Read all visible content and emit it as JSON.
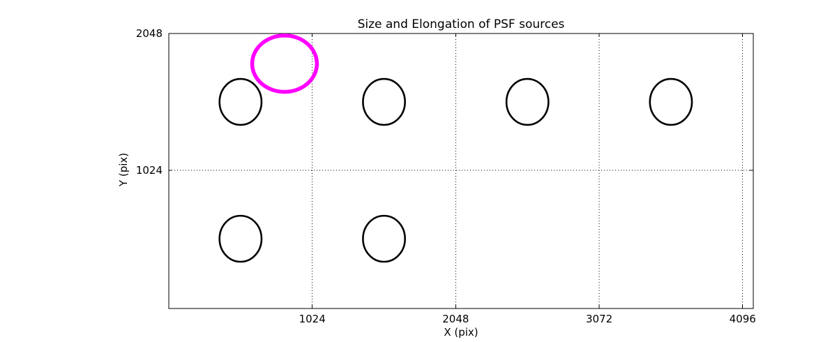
{
  "chart_data": {
    "type": "scatter",
    "title": "Size and Elongation of PSF sources",
    "xlabel": "X (pix)",
    "ylabel": "Y (pix)",
    "xlim": [
      0,
      4172
    ],
    "ylim": [
      -10,
      2048
    ],
    "xticks": [
      1024,
      2048,
      3072,
      4096
    ],
    "yticks": [
      1024,
      2048
    ],
    "grid": {
      "style": "dotted",
      "color": "#000000"
    },
    "background_color": "#ffffff",
    "frame_color": "#000000",
    "highlight_color": "#ff00ff",
    "legend": "none",
    "sources": [
      {
        "x": 512,
        "y": 1536,
        "rx": 150,
        "ry": 172,
        "color": "#000000",
        "stroke_px": 2.6,
        "kind": "psf-source"
      },
      {
        "x": 1536,
        "y": 1536,
        "rx": 150,
        "ry": 172,
        "color": "#000000",
        "stroke_px": 2.6,
        "kind": "psf-source"
      },
      {
        "x": 2560,
        "y": 1536,
        "rx": 150,
        "ry": 172,
        "color": "#000000",
        "stroke_px": 2.6,
        "kind": "psf-source"
      },
      {
        "x": 3584,
        "y": 1536,
        "rx": 150,
        "ry": 172,
        "color": "#000000",
        "stroke_px": 2.6,
        "kind": "psf-source"
      },
      {
        "x": 512,
        "y": 512,
        "rx": 150,
        "ry": 172,
        "color": "#000000",
        "stroke_px": 2.6,
        "kind": "psf-source"
      },
      {
        "x": 1536,
        "y": 512,
        "rx": 150,
        "ry": 172,
        "color": "#000000",
        "stroke_px": 2.6,
        "kind": "psf-source"
      },
      {
        "x": 826,
        "y": 1822,
        "rx": 231,
        "ry": 211,
        "color": "#ff00ff",
        "stroke_px": 5.5,
        "kind": "highlighted-source"
      }
    ]
  }
}
